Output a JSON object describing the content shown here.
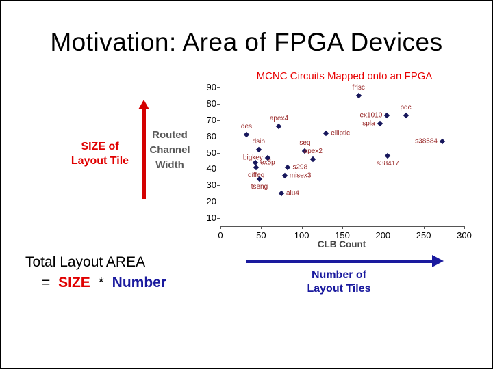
{
  "slide": {
    "title": "Motivation: Area of FPGA Devices"
  },
  "left_annotation": {
    "size_lines": [
      "SIZE of",
      "Layout Tile"
    ],
    "ylabel_lines": [
      "Routed",
      "Channel",
      "Width"
    ]
  },
  "chart_data": {
    "type": "scatter",
    "title": "MCNC Circuits Mapped onto an FPGA",
    "xlabel": "CLB Count",
    "ylabel": "Routed Channel Width",
    "xlim": [
      0,
      300
    ],
    "ylim": [
      5,
      95
    ],
    "xticks": [
      0,
      50,
      100,
      150,
      200,
      250,
      300
    ],
    "yticks": [
      90,
      80,
      70,
      60,
      50,
      40,
      30,
      20,
      10
    ],
    "grid": false,
    "legend": false,
    "points": [
      {
        "name": "frisc",
        "x": 170,
        "y": 85,
        "label_pos": "above"
      },
      {
        "name": "ex1010",
        "x": 205,
        "y": 73,
        "label_pos": "left"
      },
      {
        "name": "pdc",
        "x": 228,
        "y": 73,
        "label_pos": "above"
      },
      {
        "name": "spla",
        "x": 196,
        "y": 68,
        "label_pos": "left"
      },
      {
        "name": "apex4",
        "x": 72,
        "y": 66,
        "label_pos": "above"
      },
      {
        "name": "des",
        "x": 32,
        "y": 61,
        "label_pos": "above"
      },
      {
        "name": "elliptic",
        "x": 130,
        "y": 62,
        "label_pos": "right"
      },
      {
        "name": "dsip",
        "x": 47,
        "y": 52,
        "label_pos": "above"
      },
      {
        "name": "seq",
        "x": 104,
        "y": 51,
        "label_pos": "above"
      },
      {
        "name": "s38584",
        "x": 273,
        "y": 57,
        "label_pos": "left"
      },
      {
        "name": "bigkey",
        "x": 58,
        "y": 47,
        "label_pos": "left"
      },
      {
        "name": "apex2",
        "x": 114,
        "y": 46,
        "label_pos": "above"
      },
      {
        "name": "ex5p",
        "x": 43,
        "y": 44,
        "label_pos": "right"
      },
      {
        "name": "s38417",
        "x": 206,
        "y": 48,
        "label_pos": "below"
      },
      {
        "name": "diffeq",
        "x": 44,
        "y": 41,
        "label_pos": "below"
      },
      {
        "name": "s298",
        "x": 83,
        "y": 41,
        "label_pos": "right"
      },
      {
        "name": "misex3",
        "x": 79,
        "y": 36,
        "label_pos": "right"
      },
      {
        "name": "tseng",
        "x": 48,
        "y": 34,
        "label_pos": "below"
      },
      {
        "name": "alu4",
        "x": 75,
        "y": 25,
        "label_pos": "right"
      }
    ]
  },
  "bottom": {
    "total_line": "Total Layout AREA",
    "equation": {
      "equals": "=",
      "size_word": "SIZE",
      "star": "*",
      "number_word": "Number"
    },
    "tiles_lines": [
      "Number of",
      "Layout Tiles"
    ]
  },
  "colors": {
    "accent_red": "#e00000",
    "navy_blue": "#1a1a9e",
    "gray_label": "#5a5a5a",
    "marker_navy": "#17175c",
    "point_label_red": "#952222"
  }
}
